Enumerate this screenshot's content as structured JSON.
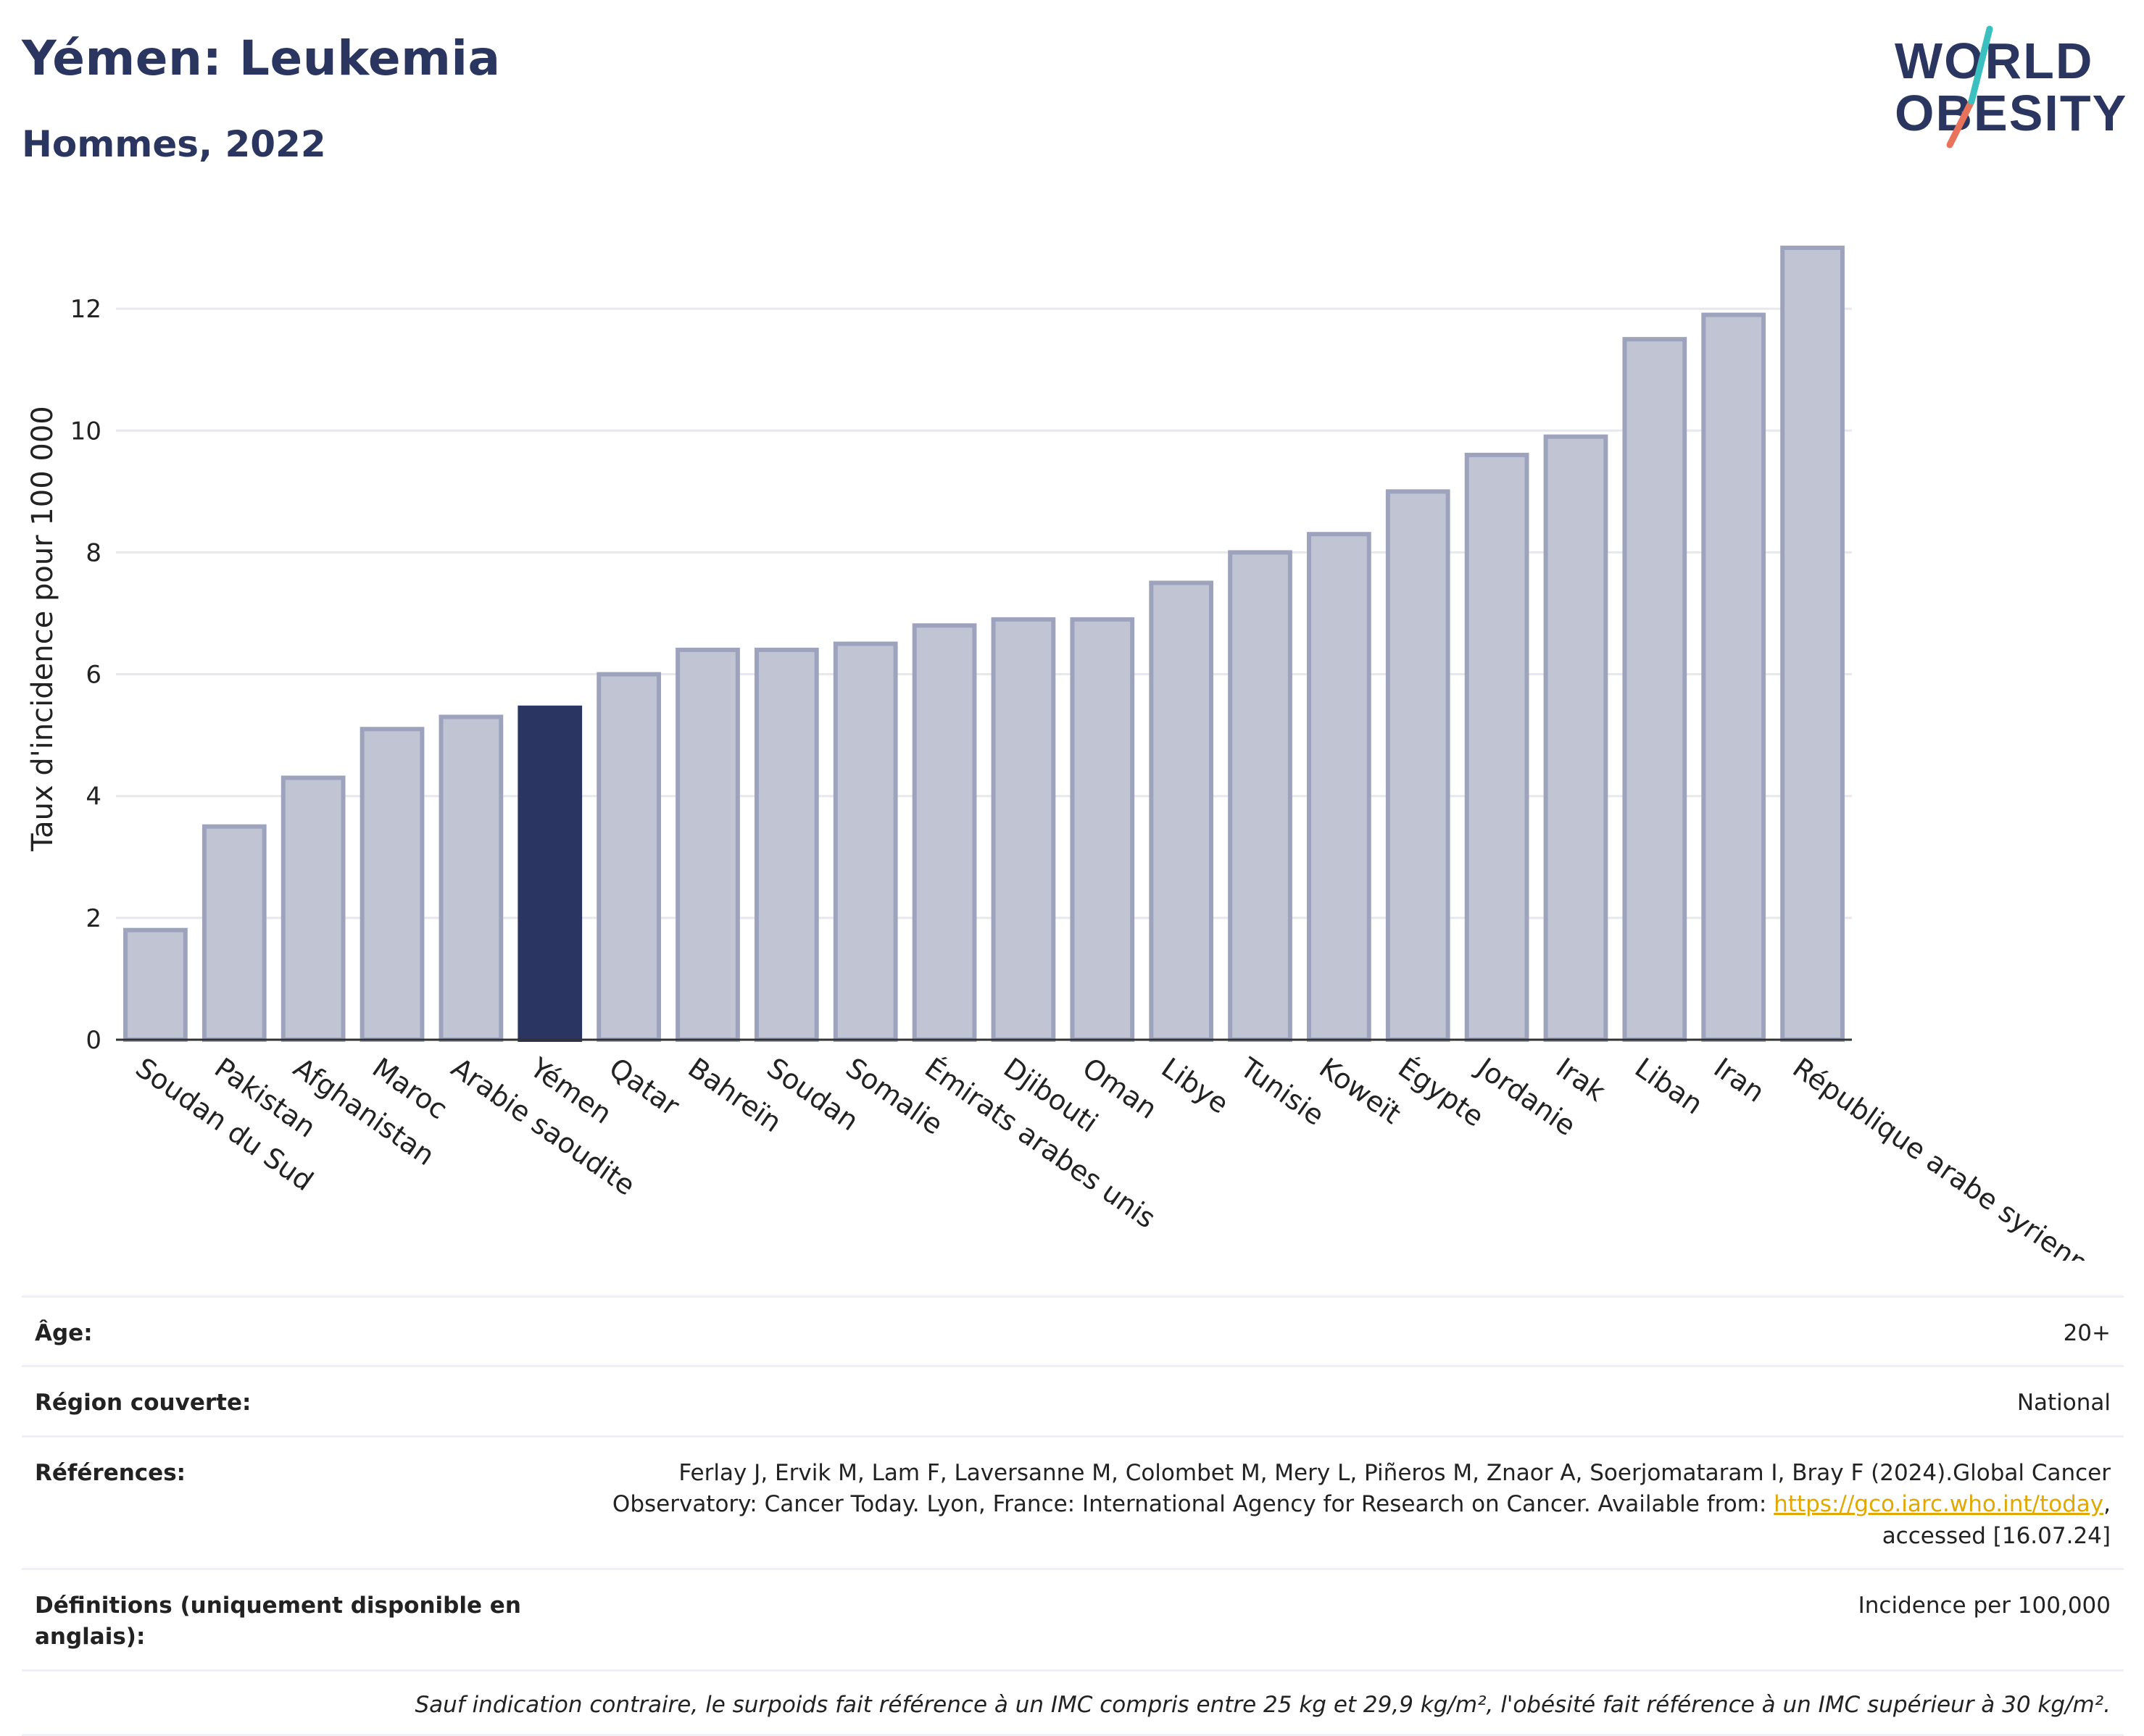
{
  "header": {
    "title": "Yémen: Leukemia",
    "subtitle": "Hommes, 2022",
    "logo_line1": "WORLD",
    "logo_line2": "OBESITY"
  },
  "chart_data": {
    "type": "bar",
    "title": "Yémen: Leukemia",
    "subtitle": "Hommes, 2022",
    "ylabel": "Taux d'incidence pour 100 000",
    "xlabel": "",
    "ylim": [
      0,
      13.5
    ],
    "yticks": [
      0,
      2,
      4,
      6,
      8,
      10,
      12
    ],
    "grid": true,
    "highlight": "Yémen",
    "colors": {
      "bar": "#c0c4d3",
      "bar_border": "#9da3bd",
      "highlight": "#2b3561",
      "grid": "#e6e8ee",
      "axis": "#333333"
    },
    "categories": [
      "Soudan du Sud",
      "Pakistan",
      "Afghanistan",
      "Maroc",
      "Arabie saoudite",
      "Yémen",
      "Qatar",
      "Bahreïn",
      "Soudan",
      "Somalie",
      "Émirats arabes unis",
      "Djibouti",
      "Oman",
      "Libye",
      "Tunisie",
      "Koweït",
      "Égypte",
      "Jordanie",
      "Irak",
      "Liban",
      "Iran",
      "République arabe syrienne"
    ],
    "values": [
      1.8,
      3.5,
      4.3,
      5.1,
      5.3,
      5.45,
      6.0,
      6.4,
      6.4,
      6.5,
      6.8,
      6.9,
      6.9,
      7.5,
      8.0,
      8.3,
      9.0,
      9.6,
      9.9,
      11.5,
      11.9,
      13.0
    ]
  },
  "info": {
    "age_label": "Âge:",
    "age_value": "20+",
    "region_label": "Région couverte:",
    "region_value": "National",
    "refs_label": "Références:",
    "refs_text_1": "Ferlay J, Ervik M, Lam F, Laversanne M, Colombet M, Mery L, Piñeros M, Znaor A, Soerjomataram I, Bray F (2024).Global Cancer Observatory: Cancer Today. Lyon, France: International Agency for Research on Cancer. Available from: ",
    "refs_link": "https://gco.iarc.who.int/today",
    "refs_text_2": ", accessed [16.07.24]",
    "defs_label": "Définitions (uniquement disponible en anglais):",
    "defs_value": "Incidence per 100,000",
    "footnote": "Sauf indication contraire, le surpoids fait référence à un IMC compris entre 25 kg et 29,9 kg/m², l'obésité fait référence à un IMC supérieur à 30 kg/m²."
  }
}
